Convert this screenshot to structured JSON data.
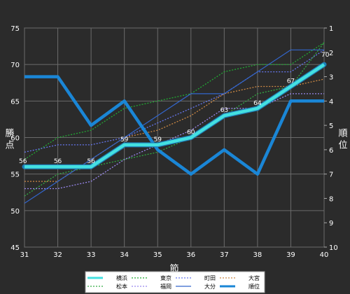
{
  "chart_data": {
    "type": "line",
    "x_label": "節",
    "y_label": "勝点",
    "y2_label": "順位",
    "x": [
      31,
      32,
      33,
      34,
      35,
      36,
      37,
      38,
      39,
      40
    ],
    "x_ticks": [
      "31",
      "32",
      "33",
      "34",
      "35",
      "36",
      "37",
      "38",
      "39",
      "40"
    ],
    "ylim": [
      45,
      75
    ],
    "y_ticks": [
      "45",
      "50",
      "55",
      "60",
      "65",
      "70",
      "75"
    ],
    "y2lim": [
      1,
      10
    ],
    "y2_ticks": [
      "1",
      "2",
      "3",
      "4",
      "5",
      "6",
      "7",
      "8",
      "9",
      "10"
    ],
    "y2_inverted": true,
    "grid": true,
    "legend_position": "bottom",
    "series": [
      {
        "name": "横浜",
        "axis": "left",
        "color": "#44e0e0",
        "style": "highlight",
        "values": [
          56,
          56,
          56,
          59,
          59,
          60,
          63,
          64,
          67,
          70
        ],
        "labels": [
          "56",
          "56",
          "56",
          "59",
          "59",
          "60",
          "63",
          "64",
          "67",
          "70"
        ]
      },
      {
        "name": "東京",
        "axis": "left",
        "color": "#22aa33",
        "style": "dotted",
        "values": [
          57,
          60,
          61,
          64,
          65,
          66,
          69,
          70,
          70,
          73
        ]
      },
      {
        "name": "町田",
        "axis": "left",
        "color": "#6677ee",
        "style": "dotted",
        "values": [
          58,
          59,
          59,
          60,
          62,
          64,
          66,
          69,
          69,
          72
        ]
      },
      {
        "name": "大宮",
        "axis": "left",
        "color": "#cc8844",
        "style": "dotted",
        "values": [
          54,
          54,
          57,
          60,
          61,
          63,
          66,
          67,
          67,
          68
        ]
      },
      {
        "name": "松本",
        "axis": "left",
        "color": "#33aa44",
        "style": "dotted",
        "values": [
          52,
          55,
          56,
          57,
          58,
          60,
          63,
          66,
          67,
          73
        ]
      },
      {
        "name": "福岡",
        "axis": "left",
        "color": "#9988ee",
        "style": "dotted",
        "values": [
          53,
          53,
          54,
          57,
          59,
          61,
          64,
          64,
          66,
          66
        ]
      },
      {
        "name": "大分",
        "axis": "left",
        "color": "#3366cc",
        "style": "thin",
        "values": [
          51,
          54,
          57,
          60,
          63,
          66,
          66,
          69,
          72,
          72
        ]
      },
      {
        "name": "順位",
        "axis": "right",
        "color": "#1a86d6",
        "style": "thick",
        "values": [
          3,
          3,
          5,
          4,
          6,
          7,
          6,
          7,
          4,
          4
        ]
      }
    ]
  }
}
